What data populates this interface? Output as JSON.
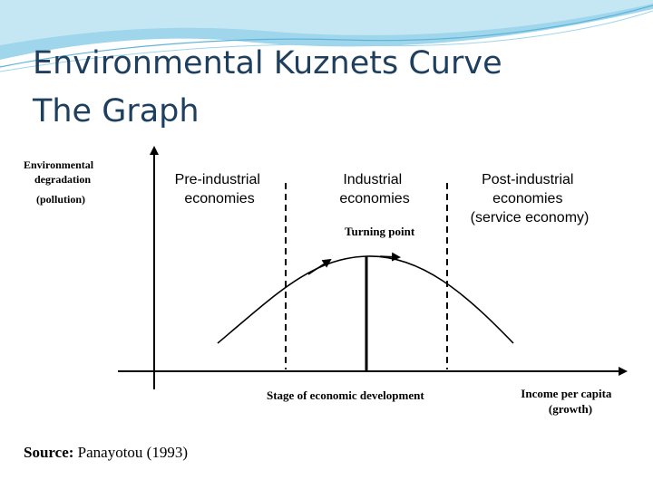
{
  "slide": {
    "title_line1": "Environmental Kuznets Curve",
    "title_line2": "The Graph"
  },
  "figure": {
    "y_axis_label": [
      "Environmental",
      "degradation",
      "(pollution)"
    ],
    "regions": [
      {
        "lines": [
          "Pre-industrial",
          "economies"
        ]
      },
      {
        "lines": [
          "Industrial",
          "economies"
        ]
      },
      {
        "lines": [
          "Post-industrial",
          "economies",
          "(service economy)"
        ]
      }
    ],
    "turning_point_label": "Turning point",
    "x_axis_center_label": "Stage of economic development",
    "x_axis_label": [
      "Income per capita",
      "(growth)"
    ],
    "source_label": "Source:",
    "source_text": "Panayotou (1993)"
  },
  "colors": {
    "title": "#1f3f5f",
    "header_swoosh": "#7fc8e6",
    "header_swoosh_light": "#c9e9f5"
  }
}
